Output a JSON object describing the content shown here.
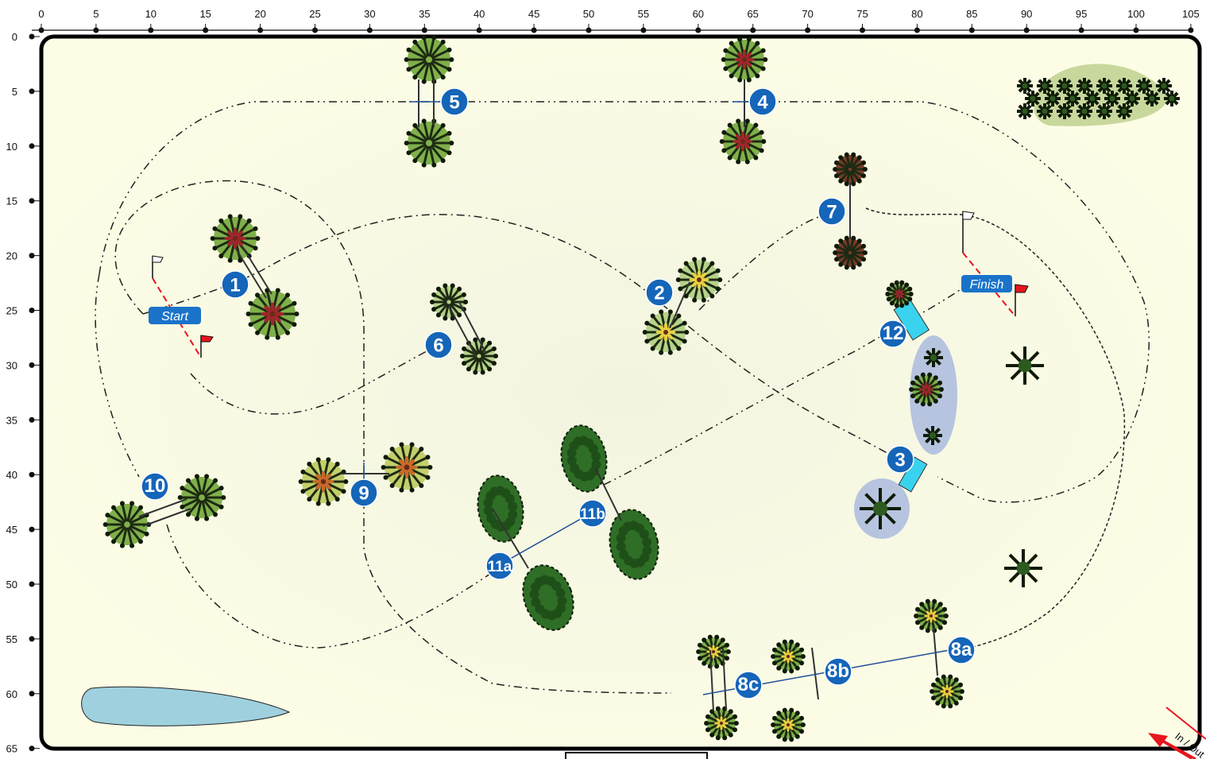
{
  "x_axis": {
    "ticks": [
      "0",
      "5",
      "10",
      "15",
      "20",
      "25",
      "30",
      "35",
      "40",
      "45",
      "50",
      "55",
      "60",
      "65",
      "70",
      "75",
      "80",
      "85",
      "90",
      "95",
      "100",
      "105"
    ]
  },
  "y_axis": {
    "ticks": [
      "0",
      "5",
      "10",
      "15",
      "20",
      "25",
      "30",
      "35",
      "40",
      "45",
      "50",
      "55",
      "60",
      "65"
    ]
  },
  "obstacles": [
    "1",
    "2",
    "3",
    "4",
    "5",
    "6",
    "7",
    "8a",
    "8b",
    "8c",
    "9",
    "10",
    "11a",
    "11b",
    "12"
  ],
  "markers": {
    "start": "Start",
    "finish": "Finish",
    "in_out": "In / Out"
  },
  "colors": {
    "arena_fill": "#fdfde6",
    "arena_border": "#000000",
    "obstacle_badge": "#1565b8",
    "label_tag": "#1a73c9",
    "water": "#9fd0de",
    "water_jump": "#39d3ef",
    "pond_oval": "#b6c4df",
    "flag_red": "#e8141e",
    "bush_green": "#7fb04a"
  }
}
